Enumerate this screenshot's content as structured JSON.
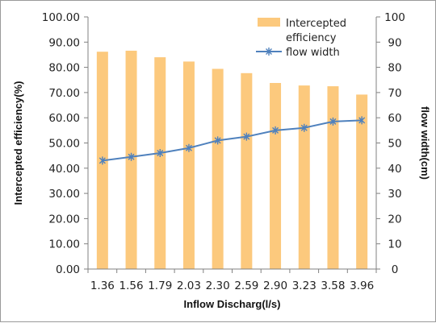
{
  "chart_data": {
    "type": "bar",
    "categories": [
      "1.36",
      "1.56",
      "1.79",
      "2.03",
      "2.30",
      "2.59",
      "2.90",
      "3.23",
      "3.58",
      "3.96"
    ],
    "series": [
      {
        "name": "Intercepted efficiency",
        "type": "bar",
        "axis": "left",
        "values": [
          86.2,
          86.6,
          84.0,
          82.3,
          79.4,
          77.7,
          73.8,
          72.8,
          72.5,
          69.2
        ]
      },
      {
        "name": "flow width",
        "type": "line",
        "axis": "right",
        "values": [
          43.0,
          44.5,
          46.0,
          48.0,
          51.0,
          52.5,
          55.0,
          56.0,
          58.5,
          59.0
        ]
      }
    ],
    "xlabel": "Inflow Discharg(l/s)",
    "ylabel": "Intercepted efficiency(%)",
    "y2label": "flow width(cm)",
    "ylim": [
      0,
      100
    ],
    "y2lim": [
      0,
      100
    ],
    "yticks": [
      "0.00",
      "10.00",
      "20.00",
      "30.00",
      "40.00",
      "50.00",
      "60.00",
      "70.00",
      "80.00",
      "90.00",
      "100.00"
    ],
    "y2ticks": [
      "0",
      "10",
      "20",
      "30",
      "40",
      "50",
      "60",
      "70",
      "80",
      "90",
      "100"
    ],
    "legend": {
      "placement": "top-right",
      "entries": [
        "Intercepted",
        "efficiency",
        "flow width"
      ]
    },
    "colors": {
      "bar": "#fcc97d",
      "line": "#4f81bd"
    },
    "grid": false
  }
}
